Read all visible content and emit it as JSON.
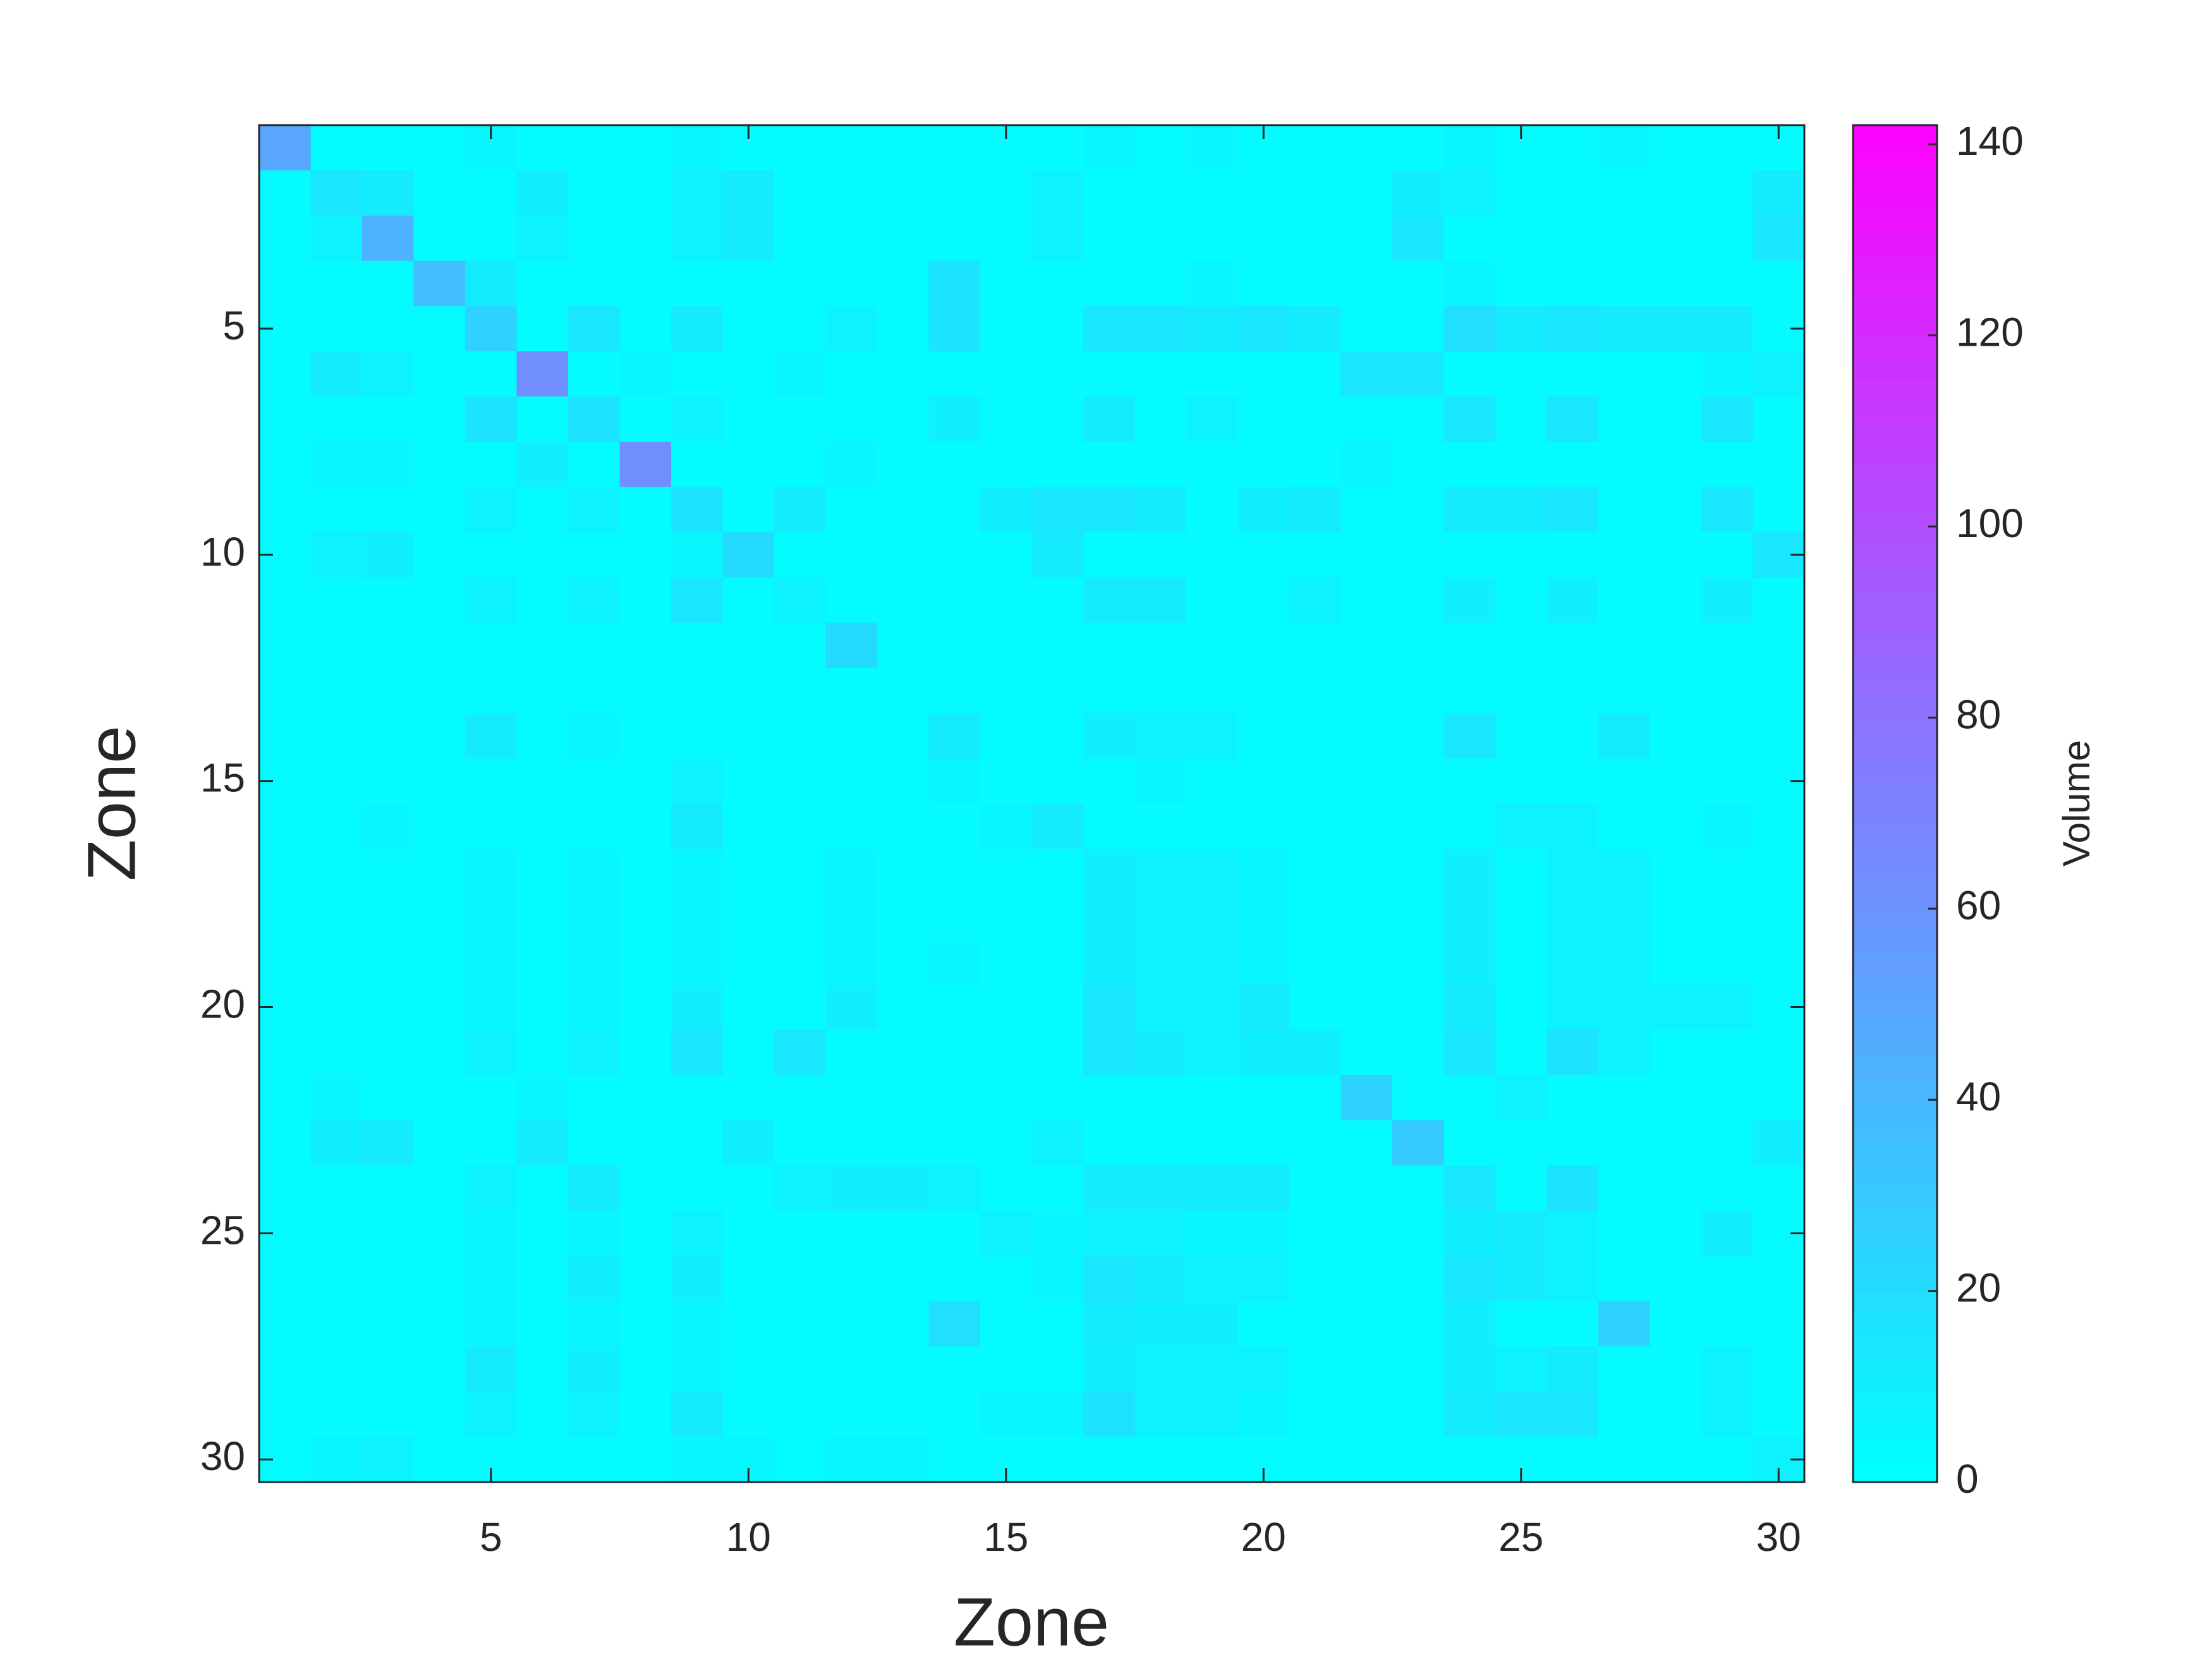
{
  "chart_data": {
    "type": "heatmap",
    "xlabel": "Zone",
    "ylabel": "Zone",
    "colorbar_label": "Volume",
    "colormap": "cool",
    "x": [
      1,
      2,
      3,
      4,
      5,
      6,
      7,
      8,
      9,
      10,
      11,
      12,
      13,
      14,
      15,
      16,
      17,
      18,
      19,
      20,
      21,
      22,
      23,
      24,
      25,
      26,
      27,
      28,
      29,
      30
    ],
    "y": [
      1,
      2,
      3,
      4,
      5,
      6,
      7,
      8,
      9,
      10,
      11,
      12,
      13,
      14,
      15,
      16,
      17,
      18,
      19,
      20,
      21,
      22,
      23,
      24,
      25,
      26,
      27,
      28,
      29,
      30
    ],
    "xlim": [
      0.5,
      30.5
    ],
    "ylim": [
      0.5,
      30.5
    ],
    "y_direction": "reverse",
    "xticks": [
      5,
      10,
      15,
      20,
      25,
      30
    ],
    "yticks": [
      5,
      10,
      15,
      20,
      25,
      30
    ],
    "clim": [
      0,
      142
    ],
    "colorbar_ticks": [
      0,
      20,
      40,
      60,
      80,
      100,
      120,
      140
    ],
    "z": [
      [
        50,
        3,
        3,
        3,
        6,
        3,
        3,
        3,
        5,
        3,
        3,
        3,
        3,
        3,
        3,
        3,
        5,
        3,
        5,
        3,
        3,
        3,
        3,
        6,
        3,
        3,
        5,
        3,
        3,
        3
      ],
      [
        3,
        15,
        12,
        3,
        3,
        10,
        3,
        3,
        8,
        12,
        3,
        3,
        3,
        3,
        3,
        8,
        3,
        3,
        3,
        3,
        3,
        3,
        10,
        8,
        3,
        3,
        3,
        3,
        3,
        12
      ],
      [
        3,
        8,
        45,
        3,
        3,
        8,
        3,
        3,
        8,
        12,
        3,
        3,
        3,
        3,
        3,
        8,
        3,
        3,
        3,
        3,
        3,
        3,
        14,
        3,
        3,
        3,
        3,
        3,
        3,
        14
      ],
      [
        3,
        3,
        3,
        38,
        12,
        3,
        3,
        3,
        3,
        3,
        3,
        3,
        3,
        18,
        3,
        3,
        3,
        3,
        6,
        3,
        3,
        3,
        3,
        6,
        3,
        3,
        3,
        3,
        3,
        3
      ],
      [
        3,
        3,
        3,
        3,
        25,
        3,
        15,
        3,
        12,
        3,
        3,
        8,
        3,
        18,
        3,
        3,
        15,
        15,
        12,
        15,
        12,
        3,
        3,
        20,
        12,
        14,
        12,
        12,
        12,
        3
      ],
      [
        3,
        12,
        8,
        3,
        3,
        65,
        3,
        5,
        3,
        3,
        5,
        3,
        3,
        3,
        3,
        3,
        3,
        3,
        3,
        3,
        3,
        14,
        14,
        3,
        3,
        3,
        3,
        3,
        6,
        8
      ],
      [
        3,
        3,
        3,
        3,
        18,
        3,
        18,
        3,
        8,
        3,
        3,
        3,
        3,
        10,
        3,
        3,
        12,
        3,
        8,
        3,
        3,
        3,
        3,
        14,
        3,
        14,
        3,
        3,
        14,
        3
      ],
      [
        3,
        6,
        6,
        3,
        3,
        10,
        3,
        65,
        3,
        3,
        3,
        6,
        3,
        3,
        3,
        3,
        3,
        3,
        3,
        3,
        3,
        5,
        3,
        3,
        3,
        3,
        3,
        3,
        3,
        3
      ],
      [
        3,
        3,
        3,
        3,
        8,
        3,
        8,
        3,
        18,
        3,
        12,
        3,
        3,
        3,
        10,
        14,
        15,
        12,
        3,
        10,
        12,
        3,
        3,
        12,
        12,
        15,
        3,
        3,
        15,
        3
      ],
      [
        3,
        8,
        10,
        3,
        3,
        3,
        3,
        3,
        6,
        22,
        3,
        3,
        3,
        3,
        3,
        12,
        3,
        3,
        3,
        3,
        3,
        3,
        3,
        3,
        3,
        3,
        3,
        3,
        3,
        15
      ],
      [
        3,
        3,
        3,
        3,
        8,
        3,
        8,
        3,
        15,
        3,
        8,
        3,
        3,
        3,
        3,
        3,
        12,
        12,
        3,
        3,
        8,
        3,
        3,
        10,
        3,
        10,
        3,
        3,
        10,
        3
      ],
      [
        3,
        3,
        3,
        3,
        3,
        3,
        3,
        3,
        3,
        3,
        3,
        22,
        3,
        3,
        3,
        3,
        3,
        3,
        3,
        3,
        3,
        3,
        3,
        3,
        3,
        3,
        3,
        3,
        3,
        3
      ],
      [
        3,
        3,
        3,
        3,
        3,
        3,
        3,
        3,
        3,
        3,
        3,
        3,
        3,
        3,
        3,
        3,
        3,
        3,
        3,
        3,
        3,
        3,
        3,
        3,
        3,
        3,
        3,
        3,
        3,
        3
      ],
      [
        3,
        3,
        3,
        3,
        12,
        3,
        6,
        3,
        3,
        3,
        3,
        3,
        3,
        12,
        3,
        3,
        10,
        8,
        8,
        3,
        3,
        3,
        3,
        14,
        3,
        3,
        12,
        3,
        3,
        3
      ],
      [
        3,
        3,
        3,
        3,
        3,
        3,
        3,
        3,
        8,
        3,
        3,
        3,
        3,
        5,
        3,
        3,
        3,
        6,
        3,
        3,
        3,
        3,
        3,
        3,
        3,
        3,
        3,
        3,
        3,
        3
      ],
      [
        3,
        3,
        5,
        3,
        3,
        3,
        3,
        3,
        12,
        3,
        3,
        3,
        3,
        3,
        5,
        12,
        3,
        3,
        3,
        3,
        3,
        3,
        3,
        3,
        8,
        8,
        3,
        3,
        5,
        3
      ],
      [
        3,
        3,
        3,
        3,
        6,
        3,
        6,
        3,
        6,
        3,
        3,
        6,
        3,
        3,
        3,
        3,
        10,
        8,
        8,
        6,
        3,
        3,
        3,
        10,
        3,
        8,
        8,
        3,
        3,
        3
      ],
      [
        3,
        3,
        3,
        3,
        6,
        3,
        6,
        3,
        6,
        3,
        3,
        6,
        3,
        3,
        3,
        3,
        10,
        8,
        8,
        6,
        3,
        3,
        3,
        10,
        3,
        8,
        8,
        3,
        3,
        3
      ],
      [
        3,
        3,
        3,
        3,
        6,
        3,
        6,
        3,
        6,
        3,
        3,
        6,
        3,
        6,
        3,
        3,
        10,
        8,
        8,
        6,
        3,
        3,
        3,
        10,
        3,
        8,
        8,
        3,
        3,
        3
      ],
      [
        3,
        3,
        3,
        3,
        6,
        3,
        6,
        3,
        10,
        3,
        3,
        10,
        3,
        3,
        3,
        3,
        15,
        8,
        8,
        12,
        3,
        3,
        3,
        12,
        3,
        8,
        8,
        8,
        8,
        3
      ],
      [
        3,
        3,
        3,
        3,
        8,
        3,
        8,
        3,
        14,
        3,
        14,
        3,
        3,
        3,
        3,
        3,
        15,
        12,
        8,
        10,
        10,
        3,
        3,
        14,
        3,
        18,
        8,
        3,
        3,
        3
      ],
      [
        3,
        5,
        3,
        3,
        3,
        5,
        3,
        3,
        3,
        3,
        3,
        3,
        3,
        3,
        3,
        3,
        3,
        3,
        3,
        3,
        3,
        25,
        3,
        3,
        8,
        3,
        3,
        3,
        3,
        3
      ],
      [
        3,
        10,
        12,
        3,
        3,
        12,
        3,
        3,
        3,
        10,
        3,
        3,
        3,
        3,
        3,
        8,
        3,
        3,
        3,
        3,
        3,
        3,
        30,
        3,
        3,
        3,
        3,
        3,
        3,
        10
      ],
      [
        3,
        3,
        3,
        3,
        8,
        3,
        12,
        3,
        3,
        3,
        8,
        10,
        10,
        8,
        3,
        3,
        12,
        12,
        12,
        12,
        3,
        3,
        3,
        15,
        3,
        18,
        3,
        3,
        3,
        3
      ],
      [
        3,
        3,
        3,
        3,
        6,
        3,
        6,
        3,
        8,
        3,
        3,
        3,
        3,
        3,
        8,
        6,
        8,
        8,
        6,
        6,
        3,
        3,
        3,
        10,
        12,
        8,
        3,
        3,
        10,
        3
      ],
      [
        3,
        3,
        3,
        3,
        6,
        3,
        10,
        3,
        10,
        3,
        3,
        3,
        3,
        3,
        3,
        6,
        14,
        12,
        8,
        8,
        3,
        3,
        3,
        14,
        12,
        8,
        3,
        3,
        3,
        3
      ],
      [
        3,
        3,
        3,
        3,
        6,
        3,
        6,
        3,
        6,
        3,
        3,
        3,
        3,
        20,
        3,
        3,
        12,
        10,
        10,
        3,
        3,
        3,
        3,
        10,
        3,
        3,
        25,
        3,
        3,
        3
      ],
      [
        3,
        3,
        3,
        3,
        12,
        3,
        10,
        3,
        6,
        3,
        3,
        3,
        3,
        3,
        3,
        3,
        10,
        8,
        8,
        8,
        3,
        3,
        3,
        10,
        8,
        12,
        3,
        3,
        8,
        3
      ],
      [
        3,
        3,
        3,
        3,
        8,
        3,
        8,
        3,
        12,
        3,
        3,
        3,
        3,
        3,
        6,
        6,
        18,
        8,
        8,
        6,
        3,
        3,
        3,
        12,
        14,
        14,
        3,
        3,
        8,
        3
      ],
      [
        3,
        6,
        8,
        3,
        3,
        3,
        3,
        3,
        6,
        6,
        3,
        5,
        5,
        3,
        3,
        3,
        3,
        3,
        3,
        3,
        3,
        3,
        3,
        3,
        3,
        3,
        3,
        3,
        3,
        8
      ]
    ]
  }
}
